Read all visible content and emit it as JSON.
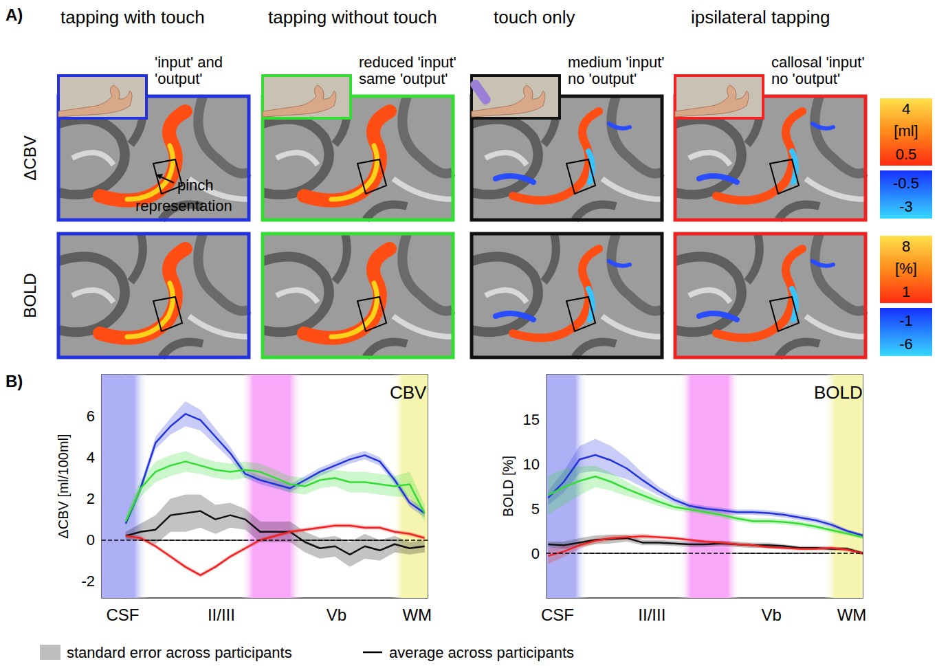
{
  "panel_a": {
    "letter": "A)",
    "rows": [
      "ΔCBV",
      "BOLD"
    ],
    "conditions": [
      {
        "title": "tapping with touch",
        "note": [
          "'input' and",
          "'output'"
        ],
        "color": "#2233dd"
      },
      {
        "title": "tapping without touch",
        "note": [
          "reduced 'input'",
          "same 'output'"
        ],
        "color": "#33dd33"
      },
      {
        "title": "touch only",
        "note": [
          "medium 'input'",
          "no 'output'"
        ],
        "color": "#111111"
      },
      {
        "title": "ipsilateral tapping",
        "note": [
          "callosal 'input'",
          "no 'output'"
        ],
        "color": "#ee2222"
      }
    ],
    "annotation": "pinch representation",
    "colorbars": [
      {
        "positive": [
          4,
          0.5
        ],
        "unit": "[ml]",
        "negative": [
          -0.5,
          -3
        ]
      },
      {
        "positive": [
          8,
          1
        ],
        "unit": "[%]",
        "negative": [
          -1,
          -6
        ]
      }
    ]
  },
  "panel_b_letter": "B)",
  "footer": {
    "band": "standard error across participants",
    "line": "average across participants"
  },
  "chart_data": [
    {
      "type": "line",
      "title": "CBV",
      "ylabel": "ΔCBV [ml/100ml]",
      "x": [
        0,
        1,
        2,
        3,
        4,
        5,
        6,
        7,
        8,
        9,
        10,
        11,
        12,
        13,
        14,
        15,
        16,
        17,
        18,
        19,
        20
      ],
      "xlim": [
        -1.6,
        20.2
      ],
      "xticks": [
        {
          "value": -0.2,
          "label": "CSF"
        },
        {
          "value": 6.4,
          "label": "II/III"
        },
        {
          "value": 14.1,
          "label": "Vb"
        },
        {
          "value": 19.5,
          "label": "WM"
        }
      ],
      "ylim": [
        -2.8,
        8
      ],
      "yticks": [
        -2,
        0,
        2,
        4,
        6
      ],
      "regions": [
        {
          "from": -1.6,
          "to": 1.5,
          "color": "#aeb0f5"
        },
        {
          "from": 7.7,
          "to": 11.8,
          "color": "#f8a8f8"
        },
        {
          "from": 17.8,
          "to": 20.2,
          "color": "#f5f5b0"
        }
      ],
      "series": [
        {
          "name": "tapping with touch",
          "color": "#2233dd",
          "values": [
            0.8,
            2.5,
            4.7,
            5.5,
            6.1,
            5.8,
            5.0,
            4.2,
            3.2,
            2.9,
            2.7,
            2.5,
            2.9,
            3.3,
            3.6,
            3.9,
            4.1,
            3.8,
            2.9,
            1.8,
            1.3
          ],
          "errors": [
            0.1,
            0.2,
            0.3,
            0.4,
            0.6,
            0.5,
            0.4,
            0.3,
            0.2,
            0.2,
            0.2,
            0.2,
            0.2,
            0.2,
            0.2,
            0.2,
            0.2,
            0.2,
            0.2,
            0.2,
            0.2
          ]
        },
        {
          "name": "tapping without touch",
          "color": "#33dd33",
          "values": [
            0.9,
            2.5,
            3.3,
            3.6,
            3.8,
            3.6,
            3.4,
            3.3,
            3.4,
            3.3,
            3.0,
            2.7,
            2.6,
            2.9,
            3.0,
            2.8,
            2.8,
            2.7,
            2.6,
            2.7,
            1.3
          ],
          "errors": [
            0.3,
            0.4,
            0.5,
            0.5,
            0.5,
            0.4,
            0.4,
            0.4,
            0.4,
            0.4,
            0.4,
            0.4,
            0.4,
            0.4,
            0.4,
            0.5,
            0.5,
            0.5,
            0.5,
            0.6,
            0.4
          ]
        },
        {
          "name": "touch only",
          "color": "#111111",
          "values": [
            0.2,
            0.4,
            0.5,
            1.2,
            1.3,
            1.4,
            1.0,
            1.2,
            1.0,
            0.4,
            0.4,
            0.4,
            -0.1,
            -0.4,
            -0.3,
            -0.7,
            -0.3,
            -0.5,
            -0.2,
            -0.4,
            -0.3
          ],
          "errors": [
            0.2,
            0.4,
            0.7,
            0.8,
            0.9,
            0.8,
            0.7,
            0.6,
            0.5,
            0.5,
            0.5,
            0.5,
            0.5,
            0.5,
            0.5,
            0.6,
            0.6,
            0.5,
            0.4,
            0.3,
            0.3
          ]
        },
        {
          "name": "ipsilateral tapping",
          "color": "#ee2222",
          "values": [
            0.2,
            0.1,
            -0.3,
            -0.8,
            -1.3,
            -1.7,
            -1.3,
            -0.8,
            -0.4,
            0.0,
            0.2,
            0.4,
            0.5,
            0.6,
            0.7,
            0.7,
            0.6,
            0.6,
            0.4,
            0.3,
            0.1
          ],
          "errors": [
            0.1,
            0.1,
            0.1,
            0.1,
            0.1,
            0.1,
            0.1,
            0.1,
            0.1,
            0.1,
            0.1,
            0.1,
            0.1,
            0.1,
            0.1,
            0.1,
            0.1,
            0.1,
            0.1,
            0.1,
            0.1
          ]
        }
      ]
    },
    {
      "type": "line",
      "title": "BOLD",
      "ylabel": "BOLD [%]",
      "x": [
        0,
        1,
        2,
        3,
        4,
        5,
        6,
        7,
        8,
        9,
        10,
        11,
        12,
        13,
        14,
        15,
        16,
        17,
        18,
        19,
        20
      ],
      "xlim": [
        -0.1,
        20
      ],
      "xticks": [
        {
          "value": 0.6,
          "label": "CSF"
        },
        {
          "value": 6.6,
          "label": "II/III"
        },
        {
          "value": 14.2,
          "label": "Vb"
        },
        {
          "value": 19.3,
          "label": "WM"
        }
      ],
      "ylim": [
        -5,
        20
      ],
      "yticks": [
        0,
        5,
        10,
        15
      ],
      "regions": [
        {
          "from": -0.1,
          "to": 2.5,
          "color": "#aeb0f5"
        },
        {
          "from": 8.3,
          "to": 12.2,
          "color": "#f8a8f8"
        },
        {
          "from": 17.5,
          "to": 20,
          "color": "#f5f5b0"
        }
      ],
      "series": [
        {
          "name": "tapping with touch",
          "color": "#2233dd",
          "values": [
            6.2,
            8.0,
            10.5,
            11.0,
            10.4,
            9.5,
            8.2,
            7.0,
            6.0,
            5.3,
            5.0,
            4.8,
            4.6,
            4.6,
            4.5,
            4.3,
            4.0,
            3.7,
            3.2,
            2.5,
            2.0
          ],
          "errors": [
            0.8,
            1.2,
            1.5,
            1.8,
            1.6,
            1.2,
            0.8,
            0.5,
            0.4,
            0.3,
            0.3,
            0.3,
            0.3,
            0.3,
            0.3,
            0.3,
            0.3,
            0.3,
            0.3,
            0.2,
            0.2
          ]
        },
        {
          "name": "tapping without touch",
          "color": "#33dd33",
          "values": [
            6.5,
            7.4,
            8.1,
            8.6,
            8.0,
            7.2,
            6.5,
            5.8,
            5.2,
            4.9,
            4.6,
            4.3,
            3.9,
            3.6,
            3.6,
            3.5,
            3.3,
            3.0,
            2.6,
            2.2,
            1.8
          ],
          "errors": [
            2.2,
            2.0,
            1.6,
            1.2,
            1.0,
            0.8,
            0.6,
            0.5,
            0.4,
            0.3,
            0.3,
            0.3,
            0.3,
            0.3,
            0.3,
            0.3,
            0.3,
            0.3,
            0.3,
            0.2,
            0.2
          ]
        },
        {
          "name": "touch only",
          "color": "#111111",
          "values": [
            1.0,
            0.9,
            1.2,
            1.5,
            1.6,
            1.7,
            1.2,
            1.2,
            1.1,
            1.0,
            1.0,
            1.1,
            1.0,
            0.9,
            0.9,
            0.8,
            0.6,
            0.6,
            0.5,
            0.5,
            0.0
          ],
          "errors": [
            0.3,
            0.4,
            0.5,
            0.5,
            0.5,
            0.4,
            0.3,
            0.3,
            0.3,
            0.3,
            0.3,
            0.3,
            0.3,
            0.3,
            0.3,
            0.2,
            0.2,
            0.2,
            0.2,
            0.2,
            0.2
          ]
        },
        {
          "name": "ipsilateral tapping",
          "color": "#ee2222",
          "values": [
            -0.3,
            0.2,
            0.9,
            1.4,
            1.7,
            1.8,
            1.9,
            1.8,
            1.7,
            1.5,
            1.3,
            1.2,
            1.0,
            0.9,
            0.7,
            0.6,
            0.5,
            0.5,
            0.6,
            0.4,
            0.0
          ],
          "errors": [
            0.9,
            0.6,
            0.4,
            0.3,
            0.3,
            0.3,
            0.3,
            0.2,
            0.2,
            0.2,
            0.2,
            0.2,
            0.2,
            0.2,
            0.2,
            0.2,
            0.2,
            0.2,
            0.2,
            0.2,
            0.2
          ]
        }
      ]
    }
  ]
}
